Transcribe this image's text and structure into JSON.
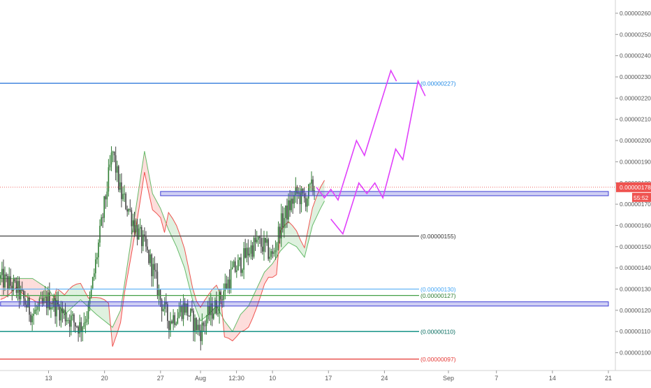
{
  "chart_data": {
    "type": "candlestick",
    "x_axis": {
      "ticks": [
        {
          "label": "13",
          "day": 13
        },
        {
          "label": "20",
          "day": 20
        },
        {
          "label": "27",
          "day": 27
        },
        {
          "label": "Aug",
          "day": 32
        },
        {
          "label": "12:30",
          "day": 36.5
        },
        {
          "label": "10",
          "day": 41
        },
        {
          "label": "17",
          "day": 48
        },
        {
          "label": "24",
          "day": 55
        },
        {
          "label": "Sep",
          "day": 63
        },
        {
          "label": "7",
          "day": 69
        },
        {
          "label": "14",
          "day": 76
        },
        {
          "label": "21",
          "day": 83
        }
      ],
      "range": [
        7,
        83
      ]
    },
    "y_axis": {
      "range": [
        9.3e-07,
        2.65e-06
      ],
      "ticks": [
        "0.00000100",
        "0.00000110",
        "0.00000120",
        "0.00000130",
        "0.00000140",
        "0.00000150",
        "0.00000160",
        "0.00000170",
        "0.00000180",
        "0.00000190",
        "0.00000200",
        "0.00000210",
        "0.00000220",
        "0.00000230",
        "0.00000240",
        "0.00000250",
        "0.00000260"
      ],
      "last_price_label": "0.00000178",
      "countdown_label": "55:52"
    },
    "levels": [
      {
        "value": 2.27e-06,
        "label": "(0.00000227)",
        "color": "#1e6fd9",
        "label_color": "#1e88e5"
      },
      {
        "value": 1.55e-06,
        "label": "(0.00000155)",
        "color": "#444444",
        "label_color": "#333333"
      },
      {
        "value": 1.3e-06,
        "label": "(0.00000130)",
        "color": "#64b5f6",
        "label_color": "#42a5f5"
      },
      {
        "value": 1.27e-06,
        "label": "(0.00000127)",
        "color": "#43a047",
        "label_color": "#2e7d32"
      },
      {
        "value": 1.1e-06,
        "label": "(0.00000110)",
        "color": "#00897b",
        "label_color": "#00695c"
      },
      {
        "value": 9.7e-07,
        "label": "(0.00000097)",
        "color": "#e53935",
        "label_color": "#e53935"
      }
    ],
    "zones": [
      {
        "low": 1.74e-06,
        "high": 1.76e-06,
        "start_day": 27,
        "end_day": 83,
        "color": "#3f3fd4"
      },
      {
        "low": 1.22e-06,
        "high": 1.24e-06,
        "start_day": 7,
        "end_day": 83,
        "color": "#3f3fd4"
      }
    ],
    "last_price": 1.78e-06,
    "projections": [
      {
        "color": "#e040fb",
        "points": [
          [
            46.5,
            1.78e-06
          ],
          [
            47.5,
            1.73e-06
          ],
          [
            48.3,
            1.77e-06
          ],
          [
            49.2,
            1.72e-06
          ],
          [
            51.5,
            2e-06
          ],
          [
            52.5,
            1.93e-06
          ],
          [
            55.8,
            2.33e-06
          ],
          [
            56.5,
            2.28e-06
          ]
        ]
      },
      {
        "color": "#e040fb",
        "points": [
          [
            48.3,
            1.63e-06
          ],
          [
            49.8,
            1.56e-06
          ],
          [
            51.8,
            1.8e-06
          ],
          [
            52.8,
            1.75e-06
          ],
          [
            53.8,
            1.8e-06
          ],
          [
            54.8,
            1.73e-06
          ],
          [
            56.4,
            1.96e-06
          ],
          [
            57.3,
            1.91e-06
          ],
          [
            59.2,
            2.28e-06
          ],
          [
            60.1,
            2.21e-06
          ]
        ]
      }
    ]
  }
}
